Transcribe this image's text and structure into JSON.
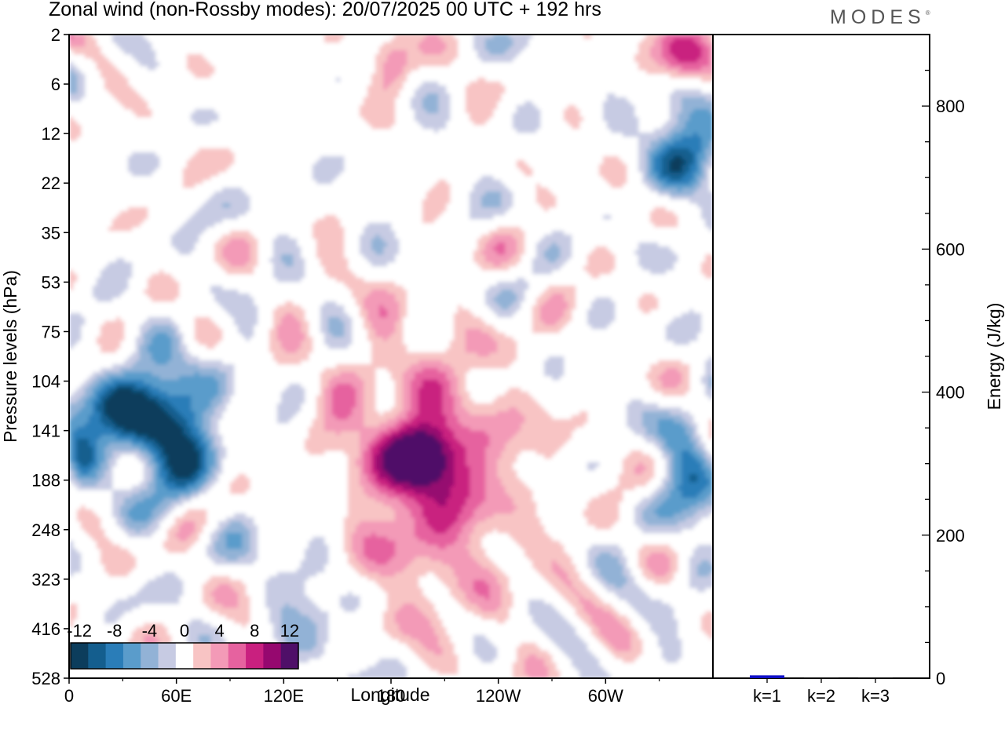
{
  "header": {
    "title": "Zonal wind (non-Rossby modes):  20/07/2025  00 UTC  + 192 hrs",
    "brand": "MODES",
    "brand_mark": "®"
  },
  "chart_data": [
    {
      "type": "heatmap",
      "title": "Zonal wind (non-Rossby modes):  20/07/2025  00 UTC  + 192 hrs",
      "xlabel": "Longitude",
      "ylabel": "Pressure levels (hPa)",
      "x_ticks": [
        "0",
        "60E",
        "120E",
        "180",
        "120W",
        "60W"
      ],
      "x_tick_degrees": [
        0,
        60,
        120,
        180,
        240,
        300
      ],
      "xlim_degrees": [
        0,
        360
      ],
      "y_ticks": [
        "2",
        "6",
        "12",
        "22",
        "35",
        "53",
        "75",
        "104",
        "141",
        "188",
        "248",
        "323",
        "416",
        "528"
      ],
      "colorbar": {
        "levels": [
          -14,
          -12,
          -10,
          -8,
          -6,
          -4,
          -2,
          2,
          4,
          6,
          8,
          10,
          12,
          14
        ],
        "tick_labels": [
          "-12",
          "-8",
          "-4",
          "0",
          "4",
          "8",
          "12"
        ],
        "colors": [
          "#0c3d5c",
          "#145e8e",
          "#2a7db8",
          "#5a9ccb",
          "#92b2d6",
          "#c7cbe3",
          "#ffffff",
          "#f8c4c4",
          "#f39ab7",
          "#e6629f",
          "#c9207f",
          "#96086f",
          "#4f0f68"
        ]
      },
      "features": [
        {
          "lon_range": [
            35,
            75
          ],
          "level_range": [
            "104",
            "188"
          ],
          "value": -14
        },
        {
          "lon_range": [
            5,
            40
          ],
          "level_range": [
            "104",
            "141"
          ],
          "value": -10
        },
        {
          "lon_range": [
            0,
            10
          ],
          "level_range": [
            "141",
            "188"
          ],
          "value": -8
        },
        {
          "lon_range": [
            150,
            240
          ],
          "level_range": [
            "104",
            "323"
          ],
          "value": 8
        },
        {
          "lon_range": [
            185,
            215
          ],
          "level_range": [
            "141",
            "188"
          ],
          "value": 10
        },
        {
          "lon_range": [
            330,
            360
          ],
          "level_range": [
            "6",
            "22"
          ],
          "value": -10
        },
        {
          "lon_range": [
            330,
            360
          ],
          "level_range": [
            "2",
            "6"
          ],
          "value": 12
        },
        {
          "lon_range": [
            170,
            190
          ],
          "level_range": [
            "2",
            "6"
          ],
          "value": 6
        },
        {
          "lon_range": [
            335,
            360
          ],
          "level_range": [
            "141",
            "248"
          ],
          "value": -8
        },
        {
          "lon_range": [
            115,
            160
          ],
          "level_range": [
            "188",
            "528"
          ],
          "value": -4
        }
      ]
    },
    {
      "type": "bar",
      "ylabel": "Energy (J/kg)",
      "categories": [
        "k=1",
        "k=2",
        "k=3"
      ],
      "values": [
        4,
        1,
        1
      ],
      "ylim": [
        0,
        900
      ],
      "y_ticks": [
        0,
        200,
        400,
        600,
        800
      ],
      "colors": [
        "#1010c8",
        "#111111",
        "#111111"
      ]
    }
  ]
}
